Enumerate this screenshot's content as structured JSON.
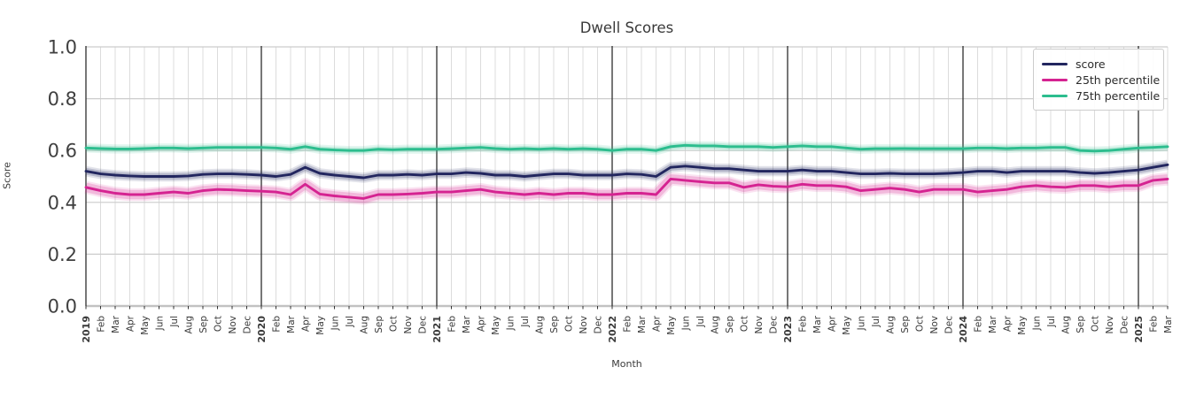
{
  "figure": {
    "title": "Dwell Scores",
    "xlabel": "Month",
    "ylabel": "Score"
  },
  "legend": {
    "entries": [
      {
        "label": "score",
        "color": "#22265f"
      },
      {
        "label": "25th percentile",
        "color": "#d52391"
      },
      {
        "label": "75th percentile",
        "color": "#2cbd8e"
      }
    ]
  },
  "chart_data": {
    "type": "line",
    "title": "Dwell Scores",
    "xlabel": "Month",
    "ylabel": "Score",
    "ylim": [
      0.0,
      1.0
    ],
    "yticks": [
      0.0,
      0.2,
      0.4,
      0.6,
      0.8,
      1.0
    ],
    "grid": true,
    "legend_position": "upper right",
    "categories": [
      "2019",
      "Feb",
      "Mar",
      "Apr",
      "May",
      "Jun",
      "Jul",
      "Aug",
      "Sep",
      "Oct",
      "Nov",
      "Dec",
      "2020",
      "Feb",
      "Mar",
      "Apr",
      "May",
      "Jun",
      "Jul",
      "Aug",
      "Sep",
      "Oct",
      "Nov",
      "Dec",
      "2021",
      "Feb",
      "Mar",
      "Apr",
      "May",
      "Jun",
      "Jul",
      "Aug",
      "Sep",
      "Oct",
      "Nov",
      "Dec",
      "2022",
      "Feb",
      "Mar",
      "Apr",
      "May",
      "Jun",
      "Jul",
      "Aug",
      "Sep",
      "Oct",
      "Nov",
      "Dec",
      "2023",
      "Feb",
      "Mar",
      "Apr",
      "May",
      "Jun",
      "Jul",
      "Aug",
      "Sep",
      "Oct",
      "Nov",
      "Dec",
      "2024",
      "Feb",
      "Mar",
      "Apr",
      "May",
      "Jun",
      "Jul",
      "Aug",
      "Sep",
      "Oct",
      "Nov",
      "Dec",
      "2025",
      "Feb",
      "Mar"
    ],
    "year_start_indices": [
      0,
      12,
      24,
      36,
      48,
      60,
      72
    ],
    "series": [
      {
        "name": "score",
        "color": "#22265f",
        "band": 0.013,
        "values": [
          0.52,
          0.51,
          0.505,
          0.502,
          0.5,
          0.5,
          0.5,
          0.502,
          0.508,
          0.51,
          0.51,
          0.508,
          0.505,
          0.5,
          0.508,
          0.535,
          0.512,
          0.505,
          0.5,
          0.495,
          0.505,
          0.505,
          0.508,
          0.505,
          0.51,
          0.51,
          0.515,
          0.512,
          0.505,
          0.505,
          0.5,
          0.505,
          0.51,
          0.51,
          0.505,
          0.505,
          0.505,
          0.51,
          0.508,
          0.5,
          0.535,
          0.54,
          0.535,
          0.53,
          0.53,
          0.525,
          0.52,
          0.52,
          0.52,
          0.525,
          0.52,
          0.52,
          0.515,
          0.51,
          0.51,
          0.512,
          0.51,
          0.51,
          0.51,
          0.512,
          0.515,
          0.52,
          0.52,
          0.515,
          0.52,
          0.52,
          0.52,
          0.52,
          0.515,
          0.512,
          0.515,
          0.52,
          0.525,
          0.535,
          0.545
        ]
      },
      {
        "name": "25th percentile",
        "color": "#d52391",
        "band": 0.018,
        "values": [
          0.458,
          0.445,
          0.435,
          0.43,
          0.43,
          0.435,
          0.44,
          0.435,
          0.445,
          0.45,
          0.448,
          0.445,
          0.443,
          0.44,
          0.43,
          0.47,
          0.432,
          0.425,
          0.42,
          0.415,
          0.43,
          0.43,
          0.432,
          0.435,
          0.44,
          0.44,
          0.445,
          0.45,
          0.44,
          0.435,
          0.43,
          0.435,
          0.43,
          0.435,
          0.435,
          0.43,
          0.43,
          0.435,
          0.435,
          0.43,
          0.49,
          0.485,
          0.48,
          0.475,
          0.475,
          0.458,
          0.468,
          0.462,
          0.46,
          0.47,
          0.465,
          0.465,
          0.46,
          0.445,
          0.45,
          0.455,
          0.45,
          0.44,
          0.45,
          0.45,
          0.45,
          0.44,
          0.445,
          0.45,
          0.46,
          0.465,
          0.46,
          0.458,
          0.465,
          0.465,
          0.46,
          0.465,
          0.465,
          0.485,
          0.49
        ]
      },
      {
        "name": "75th percentile",
        "color": "#2cbd8e",
        "band": 0.011,
        "values": [
          0.61,
          0.608,
          0.606,
          0.606,
          0.608,
          0.61,
          0.61,
          0.608,
          0.61,
          0.612,
          0.612,
          0.612,
          0.612,
          0.61,
          0.605,
          0.615,
          0.605,
          0.602,
          0.6,
          0.6,
          0.605,
          0.603,
          0.605,
          0.605,
          0.605,
          0.607,
          0.61,
          0.612,
          0.608,
          0.605,
          0.607,
          0.605,
          0.608,
          0.605,
          0.607,
          0.605,
          0.6,
          0.605,
          0.605,
          0.6,
          0.615,
          0.62,
          0.618,
          0.618,
          0.615,
          0.615,
          0.615,
          0.612,
          0.615,
          0.618,
          0.615,
          0.615,
          0.61,
          0.605,
          0.607,
          0.607,
          0.608,
          0.607,
          0.607,
          0.607,
          0.607,
          0.61,
          0.61,
          0.608,
          0.61,
          0.61,
          0.612,
          0.612,
          0.6,
          0.598,
          0.6,
          0.605,
          0.61,
          0.612,
          0.615
        ]
      }
    ]
  }
}
